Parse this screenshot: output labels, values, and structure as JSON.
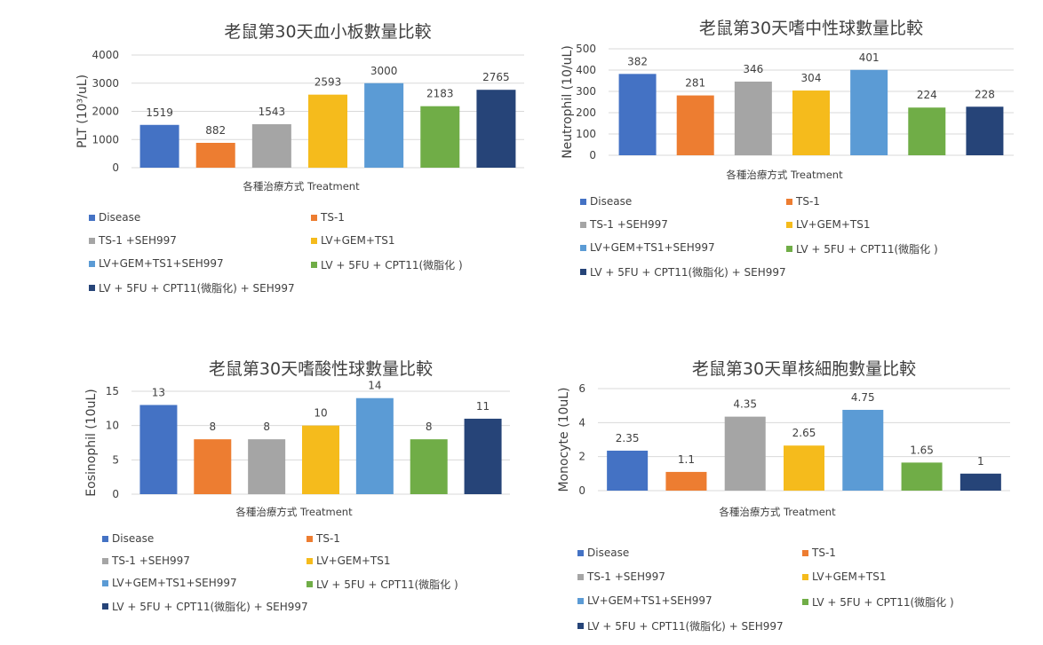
{
  "legend_labels": [
    "Disease",
    "TS-1",
    "TS-1 +SEH997",
    "LV+GEM+TS1",
    "LV+GEM+TS1+SEH997",
    "LV + 5FU + CPT11(微脂化 )",
    "LV + 5FU + CPT11(微脂化) + SEH997"
  ],
  "series_colors": [
    "#4472c4",
    "#ed7d31",
    "#a5a5a5",
    "#f5bb1c",
    "#5b9bd5",
    "#70ad47",
    "#264478"
  ],
  "chart_data": [
    {
      "type": "bar",
      "title": "老鼠第30天血小板數量比較",
      "xlabel": "各種治療方式 Treatment",
      "ylabel": "PLT (10³/uL)",
      "ylim": [
        0,
        4000
      ],
      "yticks": [
        "0",
        "1000",
        "2000",
        "3000",
        "4000"
      ],
      "grid": true,
      "legend": "bottom",
      "categories": [
        "Disease",
        "TS-1",
        "TS-1 +SEH997",
        "LV+GEM+TS1",
        "LV+GEM+TS1+SEH997",
        "LV + 5FU + CPT11(微脂化 )",
        "LV + 5FU + CPT11(微脂化) + SEH997"
      ],
      "values": [
        1519,
        882,
        1543,
        2593,
        3000,
        2183,
        2765
      ],
      "value_labels": [
        "1519",
        "882",
        "1543",
        "2593",
        "3000",
        "2183",
        "2765"
      ]
    },
    {
      "type": "bar",
      "title": "老鼠第30天嗜中性球數量比較",
      "xlabel": "各種治療方式 Treatment",
      "ylabel": "Neutrophil  (10/uL)",
      "ylim": [
        0,
        500
      ],
      "yticks": [
        "0",
        "100",
        "200",
        "300",
        "400",
        "500"
      ],
      "grid": true,
      "legend": "bottom",
      "categories": [
        "Disease",
        "TS-1",
        "TS-1 +SEH997",
        "LV+GEM+TS1",
        "LV+GEM+TS1+SEH997",
        "LV + 5FU + CPT11(微脂化 )",
        "LV + 5FU + CPT11(微脂化) + SEH997"
      ],
      "values": [
        382,
        281,
        346,
        304,
        401,
        224,
        228
      ],
      "value_labels": [
        "382",
        "281",
        "346",
        "304",
        "401",
        "224",
        "228"
      ]
    },
    {
      "type": "bar",
      "title": "老鼠第30天嗜酸性球數量比較",
      "xlabel": "各種治療方式 Treatment",
      "ylabel": "Eosinophil (10uL)",
      "ylim": [
        0,
        15
      ],
      "yticks": [
        "0",
        "5",
        "10",
        "15"
      ],
      "grid": true,
      "legend": "bottom",
      "categories": [
        "Disease",
        "TS-1",
        "TS-1 +SEH997",
        "LV+GEM+TS1",
        "LV+GEM+TS1+SEH997",
        "LV + 5FU + CPT11(微脂化 )",
        "LV + 5FU + CPT11(微脂化) + SEH997"
      ],
      "values": [
        13,
        8,
        8,
        10,
        14,
        8,
        11
      ],
      "value_labels": [
        "13",
        "8",
        "8",
        "10",
        "14",
        "8",
        "11"
      ]
    },
    {
      "type": "bar",
      "title": "老鼠第30天單核細胞數量比較",
      "xlabel": "各種治療方式 Treatment",
      "ylabel": "Monocyte  (10uL)",
      "ylim": [
        0,
        6
      ],
      "yticks": [
        "0",
        "2",
        "4",
        "6"
      ],
      "grid": true,
      "legend": "bottom",
      "categories": [
        "Disease",
        "TS-1",
        "TS-1 +SEH997",
        "LV+GEM+TS1",
        "LV+GEM+TS1+SEH997",
        "LV + 5FU + CPT11(微脂化 )",
        "LV + 5FU + CPT11(微脂化) + SEH997"
      ],
      "values": [
        2.35,
        1.1,
        4.35,
        2.65,
        4.75,
        1.65,
        1
      ],
      "value_labels": [
        "2.35",
        "1.1",
        "4.35",
        "2.65",
        "4.75",
        "1.65",
        "1"
      ]
    }
  ]
}
